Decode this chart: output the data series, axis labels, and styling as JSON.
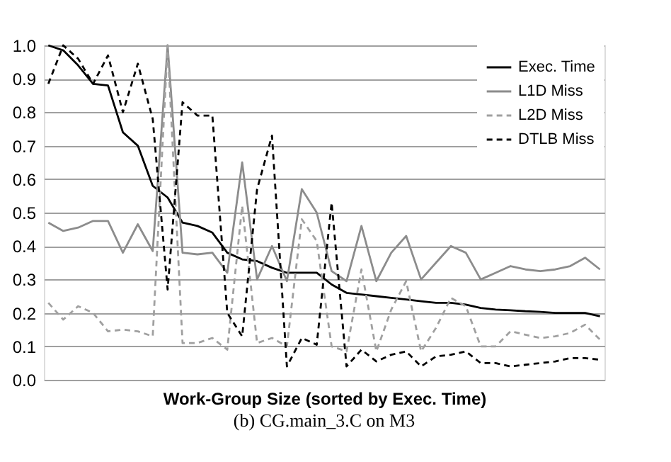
{
  "chart_data": {
    "type": "line",
    "xlabel": "Work-Group Size (sorted by Exec. Time)",
    "annotations": [
      "(b) CG.main_3.C on M3"
    ],
    "categories": [
      null,
      null,
      null,
      null,
      null,
      null,
      null,
      null,
      null,
      null,
      null,
      null,
      null,
      null,
      null,
      null,
      null,
      null,
      null,
      null,
      null,
      null,
      null,
      null,
      null,
      null,
      null,
      null,
      null,
      null,
      null,
      null,
      null,
      null,
      null,
      null,
      null,
      null
    ],
    "series": [
      {
        "name": "Exec. Time",
        "color": "#000000",
        "line_style": "solid",
        "values": [
          1.0,
          0.985,
          0.94,
          0.885,
          0.88,
          0.74,
          0.7,
          0.58,
          0.545,
          0.47,
          0.46,
          0.44,
          0.38,
          0.36,
          0.355,
          0.335,
          0.32,
          0.32,
          0.32,
          0.285,
          0.26,
          0.255,
          0.25,
          0.245,
          0.24,
          0.235,
          0.23,
          0.23,
          0.225,
          0.215,
          0.21,
          0.208,
          0.205,
          0.203,
          0.2,
          0.2,
          0.2,
          0.19
        ]
      },
      {
        "name": "L1D Miss",
        "color": "#8c8c8c",
        "line_style": "solid",
        "values": [
          0.47,
          0.445,
          0.455,
          0.475,
          0.475,
          0.38,
          0.465,
          0.385,
          1.0,
          0.38,
          0.375,
          0.38,
          0.32,
          0.65,
          0.3,
          0.4,
          0.295,
          0.57,
          0.5,
          0.325,
          0.295,
          0.46,
          0.295,
          0.38,
          0.43,
          0.3,
          0.35,
          0.4,
          0.38,
          0.3,
          0.32,
          0.34,
          0.33,
          0.325,
          0.33,
          0.34,
          0.365,
          0.33
        ]
      },
      {
        "name": "L2D Miss",
        "color": "#a0a0a0",
        "line_style": "dashed",
        "values": [
          0.23,
          0.18,
          0.22,
          0.2,
          0.145,
          0.15,
          0.145,
          0.13,
          1.0,
          0.11,
          0.11,
          0.125,
          0.09,
          0.52,
          0.11,
          0.125,
          0.1,
          0.48,
          0.415,
          0.1,
          0.085,
          0.33,
          0.085,
          0.21,
          0.295,
          0.085,
          0.155,
          0.245,
          0.22,
          0.1,
          0.1,
          0.145,
          0.135,
          0.125,
          0.13,
          0.14,
          0.165,
          0.12
        ]
      },
      {
        "name": "DTLB Miss",
        "color": "#000000",
        "line_style": "dashed",
        "values": [
          0.885,
          1.0,
          0.96,
          0.885,
          0.97,
          0.8,
          0.945,
          0.78,
          0.27,
          0.83,
          0.79,
          0.79,
          0.2,
          0.13,
          0.57,
          0.73,
          0.04,
          0.125,
          0.105,
          0.53,
          0.04,
          0.09,
          0.055,
          0.075,
          0.085,
          0.04,
          0.07,
          0.075,
          0.085,
          0.05,
          0.05,
          0.04,
          0.045,
          0.05,
          0.055,
          0.065,
          0.065,
          0.06
        ]
      }
    ],
    "ylim": [
      0,
      1.0
    ],
    "yticks": [
      {
        "value": 0,
        "label": "0.0"
      },
      0.1,
      0.2,
      0.3,
      0.4,
      0.5,
      0.6,
      0.7,
      0.8,
      0.9,
      {
        "value": 1.0,
        "label": "1.0"
      }
    ],
    "grid": "y",
    "legend": "top right",
    "tick_labels": "y"
  }
}
